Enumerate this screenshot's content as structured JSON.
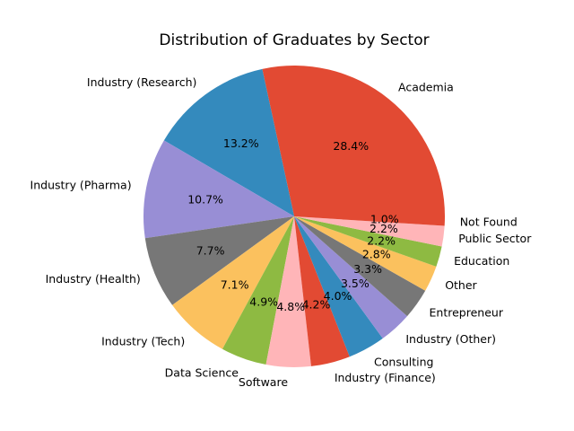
{
  "chart_data": {
    "type": "pie",
    "title": "Distribution of Graduates by Sector",
    "start_angle": 0,
    "direction": "counterclockwise",
    "categories": [
      "Academia",
      "Industry (Research)",
      "Industry (Pharma)",
      "Industry (Health)",
      "Industry (Tech)",
      "Data Science",
      "Software",
      "Industry (Finance)",
      "Consulting",
      "Industry (Other)",
      "Entrepreneur",
      "Other",
      "Education",
      "Public Sector",
      "Not Found"
    ],
    "values": [
      28.4,
      13.2,
      10.7,
      7.7,
      7.1,
      4.9,
      4.8,
      4.2,
      4.0,
      3.5,
      3.3,
      2.8,
      2.2,
      2.2,
      1.0
    ],
    "value_labels": [
      "28.4%",
      "13.2%",
      "10.7%",
      "7.7%",
      "7.1%",
      "4.9%",
      "4.8%",
      "4.2%",
      "4.0%",
      "3.5%",
      "3.3%",
      "2.8%",
      "2.2%",
      "2.2%",
      "1.0%"
    ],
    "colors": [
      "#E24A33",
      "#348ABD",
      "#988ED5",
      "#777777",
      "#FBC15E",
      "#8EBA42",
      "#FFB5B8",
      "#E24A33",
      "#348ABD",
      "#988ED5",
      "#777777",
      "#FBC15E",
      "#8EBA42",
      "#FFB5B8",
      "#E24A33"
    ]
  }
}
